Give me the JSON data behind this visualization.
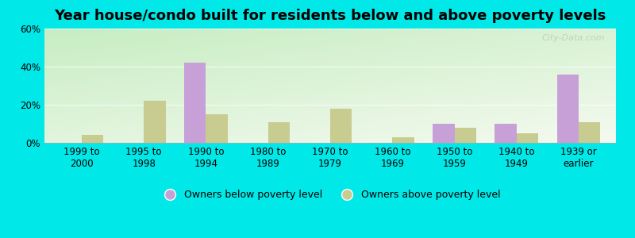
{
  "title": "Year house/condo built for residents below and above poverty levels",
  "categories": [
    "1999 to\n2000",
    "1995 to\n1998",
    "1990 to\n1994",
    "1980 to\n1989",
    "1970 to\n1979",
    "1960 to\n1969",
    "1950 to\n1959",
    "1940 to\n1949",
    "1939 or\nearlier"
  ],
  "below_poverty": [
    0,
    0,
    42,
    0,
    0,
    0,
    10,
    10,
    36
  ],
  "above_poverty": [
    4,
    22,
    15,
    11,
    18,
    3,
    8,
    5,
    11
  ],
  "below_color": "#c8a0d8",
  "above_color": "#c8cc90",
  "background_color": "#00e8e8",
  "ylim": [
    0,
    60
  ],
  "yticks": [
    0,
    20,
    40,
    60
  ],
  "ytick_labels": [
    "0%",
    "20%",
    "40%",
    "60%"
  ],
  "legend_below": "Owners below poverty level",
  "legend_above": "Owners above poverty level",
  "bar_width": 0.35,
  "title_fontsize": 13,
  "tick_fontsize": 8.5,
  "legend_fontsize": 9,
  "watermark": "City-Data.com"
}
